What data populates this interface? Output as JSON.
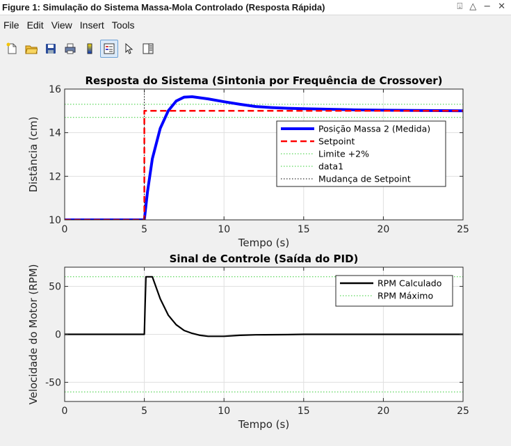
{
  "window": {
    "title": "Figure 1: Simulação do Sistema Massa-Mola Controlado (Resposta Rápida)",
    "controls": [
      "⍗",
      "△",
      "−",
      "✕"
    ]
  },
  "menu": [
    "File",
    "Edit",
    "View",
    "Insert",
    "Tools"
  ],
  "toolbar": [
    {
      "icon": "new-figure-icon"
    },
    {
      "icon": "open-folder-icon"
    },
    {
      "icon": "save-icon"
    },
    {
      "icon": "print-icon"
    },
    {
      "icon": "colorbar-icon"
    },
    {
      "icon": "legend-icon"
    },
    {
      "icon": "pointer-icon"
    },
    {
      "icon": "property-editor-icon"
    }
  ],
  "colors": {
    "blue": "#0000ff",
    "red": "#ff0000",
    "green_dotted": "#33cc33",
    "black": "#000000"
  },
  "chart_data": [
    {
      "type": "line",
      "title": "Resposta do Sistema (Sintonia por Frequência de Crossover)",
      "xlabel": "Tempo (s)",
      "ylabel": "Distância (cm)",
      "xlim": [
        0,
        25
      ],
      "ylim": [
        10,
        16
      ],
      "xticks": [
        0,
        5,
        10,
        15,
        20,
        25
      ],
      "yticks": [
        10,
        12,
        14,
        16
      ],
      "grid": true,
      "legend_position": "right",
      "series": [
        {
          "name": "Posição Massa 2 (Medida)",
          "color": "#0000ff",
          "style": "solid",
          "x": [
            0,
            5,
            5.2,
            5.5,
            6,
            6.5,
            7,
            7.5,
            8,
            9,
            10,
            11,
            12,
            13,
            14,
            15,
            16,
            18,
            20,
            22,
            25
          ],
          "y": [
            10,
            10,
            11.3,
            12.8,
            14.2,
            15.0,
            15.45,
            15.63,
            15.65,
            15.55,
            15.42,
            15.3,
            15.2,
            15.15,
            15.12,
            15.1,
            15.08,
            15.05,
            15.03,
            15.02,
            15.0
          ]
        },
        {
          "name": "Setpoint",
          "color": "#ff0000",
          "style": "dashed",
          "x": [
            0,
            5,
            5,
            25
          ],
          "y": [
            10,
            10,
            15,
            15
          ]
        },
        {
          "name": "Limite +2%",
          "color": "#33cc33",
          "style": "dotted",
          "x": [
            0,
            25
          ],
          "y": [
            15.3,
            15.3
          ]
        },
        {
          "name": "data1",
          "color": "#33cc33",
          "style": "dotted",
          "x": [
            0,
            25
          ],
          "y": [
            14.7,
            14.7
          ]
        },
        {
          "name": "Mudança de Setpoint",
          "color": "#000000",
          "style": "dotted",
          "x": [
            5,
            5
          ],
          "y": [
            10,
            16
          ]
        }
      ]
    },
    {
      "type": "line",
      "title": "Sinal de Controle (Saída do PID)",
      "xlabel": "Tempo (s)",
      "ylabel": "Velocidade do Motor (RPM)",
      "xlim": [
        0,
        25
      ],
      "ylim": [
        -70,
        70
      ],
      "xticks": [
        0,
        5,
        10,
        15,
        20,
        25
      ],
      "yticks": [
        -50,
        0,
        50
      ],
      "grid": true,
      "legend_position": "top-right",
      "series": [
        {
          "name": "RPM Calculado",
          "color": "#000000",
          "style": "solid",
          "x": [
            0,
            5,
            5.05,
            5.1,
            5.5,
            6,
            6.5,
            7,
            7.5,
            8,
            8.5,
            9,
            10,
            11,
            12,
            14,
            15,
            25
          ],
          "y": [
            0,
            0,
            30,
            60,
            60,
            37,
            20,
            10,
            4,
            1,
            -1,
            -2,
            -2,
            -1,
            -0.5,
            -0.3,
            0,
            0
          ]
        },
        {
          "name": "RPM Máximo",
          "color": "#33cc33",
          "style": "dotted",
          "x": [
            0,
            25
          ],
          "y": [
            60,
            60
          ]
        },
        {
          "name": "",
          "color": "#33cc33",
          "style": "dotted",
          "x": [
            0,
            25
          ],
          "y": [
            -60,
            -60
          ]
        }
      ]
    }
  ]
}
